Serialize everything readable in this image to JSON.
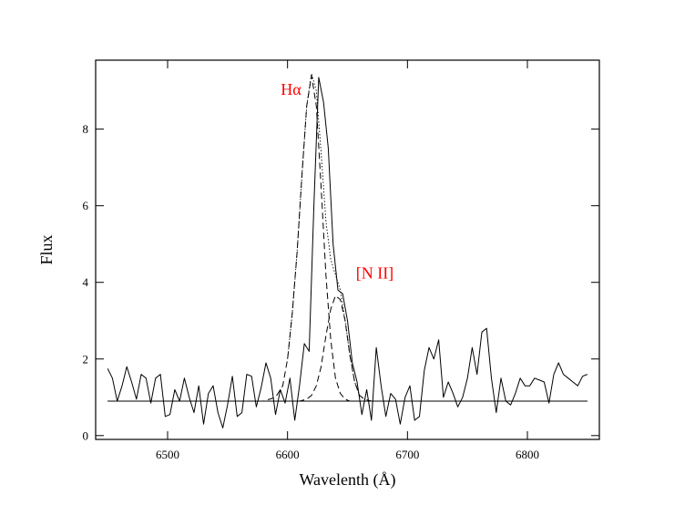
{
  "chart_data": {
    "type": "line",
    "title": "",
    "xlabel": "Wavelenth (Å)",
    "ylabel": "Flux",
    "xlim": [
      6440,
      6860
    ],
    "ylim": [
      -0.1,
      9.8
    ],
    "xticks": [
      6500,
      6600,
      6700,
      6800
    ],
    "yticks": [
      0,
      2,
      4,
      6,
      8
    ],
    "grid": false,
    "legend": "none",
    "annotations": [
      {
        "text": "Hα",
        "x": 6605,
        "y": 8.9,
        "color": "#ff0000"
      },
      {
        "text": "[N II]",
        "x": 6657,
        "y": 4.1,
        "color": "#ff0000"
      }
    ],
    "series": [
      {
        "style": "solid",
        "x": [
          6450,
          6454,
          6458,
          6462,
          6466,
          6470,
          6474,
          6478,
          6482,
          6486,
          6490,
          6494,
          6498,
          6502,
          6506,
          6510,
          6514,
          6518,
          6522,
          6526,
          6530,
          6534,
          6538,
          6542,
          6546,
          6550,
          6554,
          6558,
          6562,
          6566,
          6570,
          6574,
          6578,
          6582,
          6586,
          6590,
          6594,
          6598,
          6602,
          6606,
          6610,
          6614,
          6618,
          6622,
          6626,
          6630,
          6634,
          6638,
          6642,
          6646,
          6650,
          6654,
          6658,
          6662,
          6666,
          6670,
          6674,
          6678,
          6682,
          6686,
          6690,
          6694,
          6698,
          6702,
          6706,
          6710,
          6714,
          6718,
          6722,
          6726,
          6730,
          6734,
          6738,
          6742,
          6746,
          6750,
          6754,
          6758,
          6762,
          6766,
          6770,
          6774,
          6778,
          6782,
          6786,
          6790,
          6794,
          6798,
          6802,
          6806,
          6810,
          6814,
          6818,
          6822,
          6826,
          6830,
          6834,
          6838,
          6842,
          6846,
          6850
        ],
        "y": [
          1.75,
          1.5,
          0.9,
          1.3,
          1.8,
          1.4,
          0.95,
          1.6,
          1.5,
          0.85,
          1.5,
          1.6,
          0.5,
          0.55,
          1.2,
          0.9,
          1.5,
          1.0,
          0.6,
          1.3,
          0.3,
          1.1,
          1.3,
          0.6,
          0.2,
          0.8,
          1.55,
          0.5,
          0.6,
          1.6,
          1.55,
          0.75,
          1.25,
          1.9,
          1.5,
          0.55,
          1.2,
          0.85,
          1.5,
          0.4,
          1.3,
          2.4,
          2.2,
          6.0,
          9.35,
          8.7,
          7.5,
          5.0,
          3.8,
          3.7,
          3.0,
          1.9,
          1.4,
          0.55,
          1.2,
          0.4,
          2.3,
          1.3,
          0.5,
          1.1,
          0.95,
          0.3,
          1.0,
          1.3,
          0.4,
          0.5,
          1.7,
          2.3,
          2.0,
          2.5,
          1.0,
          1.4,
          1.1,
          0.75,
          1.0,
          1.5,
          2.3,
          1.6,
          2.7,
          2.8,
          1.5,
          0.6,
          1.5,
          0.9,
          0.8,
          1.1,
          1.5,
          1.3,
          1.3,
          1.5,
          1.45,
          1.4,
          0.85,
          1.6,
          1.9,
          1.6,
          1.5,
          1.4,
          1.3,
          1.55,
          1.6
        ]
      },
      {
        "style": "dashed",
        "x": [
          6450,
          6560,
          6580,
          6590,
          6596,
          6600,
          6604,
          6608,
          6612,
          6616,
          6620,
          6624,
          6628,
          6632,
          6636,
          6640,
          6644,
          6648,
          6652,
          6656,
          6660,
          6664,
          6670,
          6680,
          6700,
          6850
        ],
        "y": [
          0.9,
          0.9,
          0.9,
          1.0,
          1.3,
          2.0,
          3.2,
          4.8,
          6.8,
          8.6,
          9.4,
          8.6,
          6.5,
          4.2,
          2.5,
          1.5,
          1.1,
          0.95,
          0.9,
          0.9,
          0.9,
          0.9,
          0.9,
          0.9,
          0.9,
          0.9
        ]
      },
      {
        "style": "dashed",
        "x": [
          6450,
          6600,
          6610,
          6616,
          6620,
          6624,
          6628,
          6632,
          6636,
          6640,
          6644,
          6648,
          6652,
          6656,
          6660,
          6664,
          6670,
          6680,
          6700,
          6850
        ],
        "y": [
          0.9,
          0.9,
          0.9,
          0.95,
          1.05,
          1.3,
          1.8,
          2.6,
          3.3,
          3.65,
          3.55,
          3.0,
          2.1,
          1.4,
          1.05,
          0.95,
          0.9,
          0.9,
          0.9,
          0.9
        ]
      },
      {
        "style": "dotted",
        "x": [
          6600,
          6604,
          6608,
          6612,
          6616,
          6620,
          6624,
          6628,
          6632,
          6636,
          6640,
          6644,
          6648,
          6652,
          6656,
          6660,
          6664,
          6670,
          6680
        ],
        "y": [
          2.0,
          3.2,
          4.8,
          6.8,
          8.6,
          9.45,
          9.0,
          7.4,
          5.6,
          4.6,
          4.2,
          3.8,
          3.0,
          2.1,
          1.4,
          1.05,
          0.95,
          0.9,
          0.9
        ]
      },
      {
        "style": "continuum",
        "x": [
          6450,
          6850
        ],
        "y": [
          0.9,
          0.9
        ]
      }
    ]
  }
}
